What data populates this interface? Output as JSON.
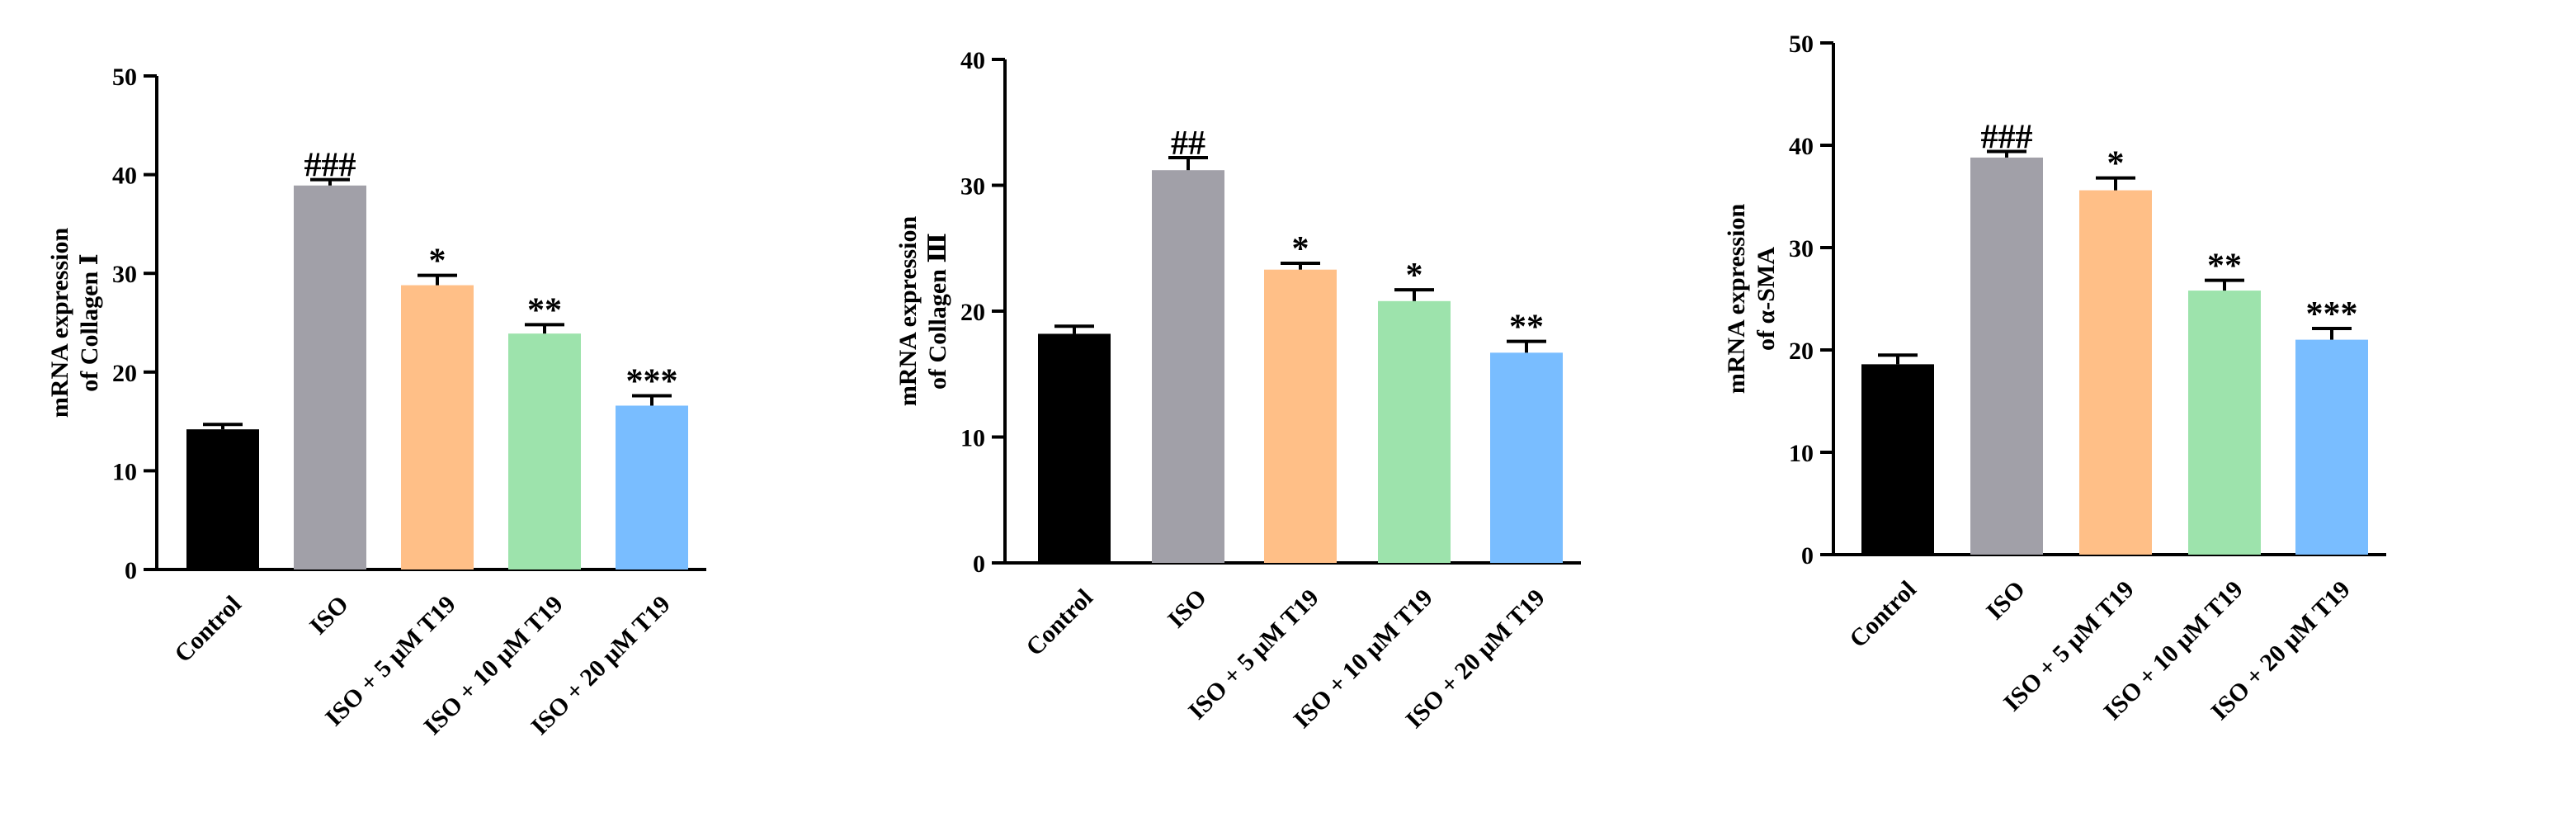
{
  "colors": {
    "bar_fills": [
      "#000000",
      "#a1a0a8",
      "#ffbf87",
      "#9de3ac",
      "#79bdff"
    ],
    "axis": "#000000"
  },
  "chart_data": [
    {
      "type": "bar",
      "categories": [
        "Control",
        "ISO",
        "ISO + 5 μM T19",
        "ISO + 10 μM T19",
        "ISO + 20 μM T19"
      ],
      "values": [
        14.2,
        38.9,
        28.8,
        23.9,
        16.6
      ],
      "errors": [
        0.5,
        0.6,
        1.0,
        0.9,
        1.0
      ],
      "significance": [
        "",
        "###",
        "*",
        "**",
        "***"
      ],
      "ylabel_lines": [
        "mRNA expression",
        "of Collagen Ⅰ"
      ],
      "ylim": [
        0,
        50
      ],
      "yticks": [
        0,
        10,
        20,
        30,
        40,
        50
      ]
    },
    {
      "type": "bar",
      "categories": [
        "Control",
        "ISO",
        "ISO + 5 μM T19",
        "ISO + 10 μM T19",
        "ISO + 20 μM T19"
      ],
      "values": [
        18.2,
        31.2,
        23.3,
        20.8,
        16.7
      ],
      "errors": [
        0.6,
        1.0,
        0.5,
        0.9,
        0.9
      ],
      "significance": [
        "",
        "##",
        "*",
        "*",
        "**"
      ],
      "ylabel_lines": [
        "mRNA expression",
        "of Collagen Ⅲ"
      ],
      "ylim": [
        0,
        40
      ],
      "yticks": [
        0,
        10,
        20,
        30,
        40
      ]
    },
    {
      "type": "bar",
      "categories": [
        "Control",
        "ISO",
        "ISO + 5 μM T19",
        "ISO + 10 μM T19",
        "ISO + 20 μM T19"
      ],
      "values": [
        18.6,
        38.8,
        35.6,
        25.8,
        21.0
      ],
      "errors": [
        0.9,
        0.6,
        1.2,
        1.0,
        1.1
      ],
      "significance": [
        "",
        "###",
        "*",
        "**",
        "***"
      ],
      "ylabel_lines": [
        "mRNA expression",
        "of α-SMA"
      ],
      "ylim": [
        0,
        50
      ],
      "yticks": [
        0,
        10,
        20,
        30,
        40,
        50
      ]
    }
  ]
}
